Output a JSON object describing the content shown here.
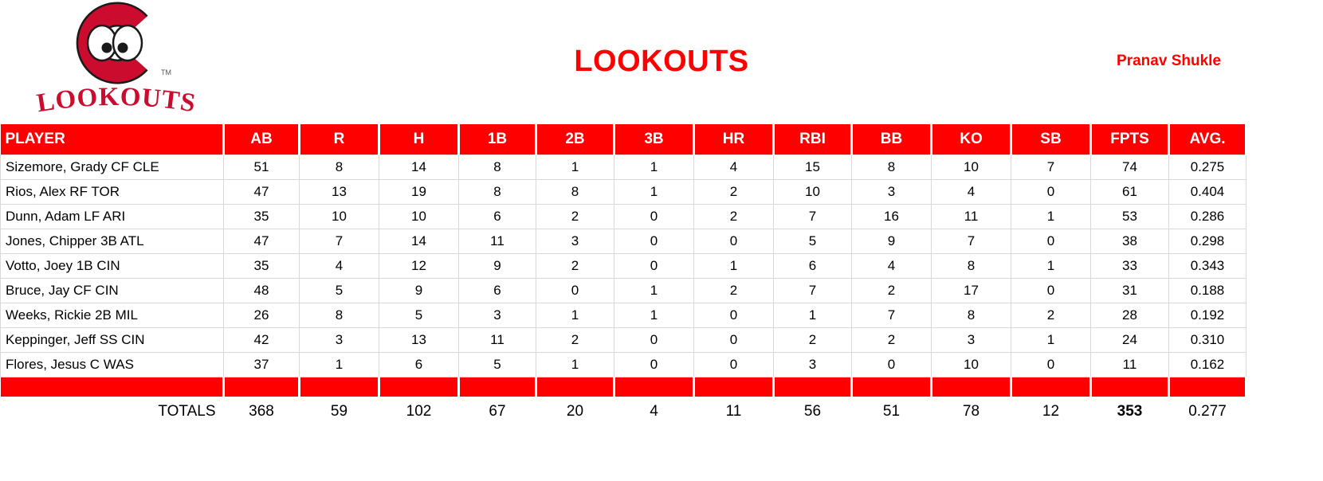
{
  "logo": {
    "word": "LOOKOUTS",
    "tm": "TM"
  },
  "header": {
    "team_title": "LOOKOUTS",
    "owner": "Pranav Shukle"
  },
  "colors": {
    "table_red": "#fe0000",
    "title_red": "#ff0000",
    "logo_red": "#cb0c2e"
  },
  "chart_data": {
    "type": "table",
    "title": "LOOKOUTS",
    "columns": [
      "PLAYER",
      "AB",
      "R",
      "H",
      "1B",
      "2B",
      "3B",
      "HR",
      "RBI",
      "BB",
      "KO",
      "SB",
      "FPTS",
      "AVG."
    ],
    "rows": [
      {
        "player": "Sizemore, Grady CF CLE",
        "stats": [
          "51",
          "8",
          "14",
          "8",
          "1",
          "1",
          "4",
          "15",
          "8",
          "10",
          "7",
          "74",
          "0.275"
        ]
      },
      {
        "player": "Rios, Alex RF TOR",
        "stats": [
          "47",
          "13",
          "19",
          "8",
          "8",
          "1",
          "2",
          "10",
          "3",
          "4",
          "0",
          "61",
          "0.404"
        ]
      },
      {
        "player": "Dunn, Adam LF ARI",
        "stats": [
          "35",
          "10",
          "10",
          "6",
          "2",
          "0",
          "2",
          "7",
          "16",
          "11",
          "1",
          "53",
          "0.286"
        ]
      },
      {
        "player": "Jones, Chipper 3B ATL",
        "stats": [
          "47",
          "7",
          "14",
          "11",
          "3",
          "0",
          "0",
          "5",
          "9",
          "7",
          "0",
          "38",
          "0.298"
        ]
      },
      {
        "player": "Votto, Joey 1B CIN",
        "stats": [
          "35",
          "4",
          "12",
          "9",
          "2",
          "0",
          "1",
          "6",
          "4",
          "8",
          "1",
          "33",
          "0.343"
        ]
      },
      {
        "player": "Bruce, Jay CF CIN",
        "stats": [
          "48",
          "5",
          "9",
          "6",
          "0",
          "1",
          "2",
          "7",
          "2",
          "17",
          "0",
          "31",
          "0.188"
        ]
      },
      {
        "player": "Weeks, Rickie 2B MIL",
        "stats": [
          "26",
          "8",
          "5",
          "3",
          "1",
          "1",
          "0",
          "1",
          "7",
          "8",
          "2",
          "28",
          "0.192"
        ]
      },
      {
        "player": "Keppinger, Jeff SS CIN",
        "stats": [
          "42",
          "3",
          "13",
          "11",
          "2",
          "0",
          "0",
          "2",
          "2",
          "3",
          "1",
          "24",
          "0.310"
        ]
      },
      {
        "player": "Flores, Jesus C WAS",
        "stats": [
          "37",
          "1",
          "6",
          "5",
          "1",
          "0",
          "0",
          "3",
          "0",
          "10",
          "0",
          "11",
          "0.162"
        ]
      }
    ],
    "totals": {
      "label": "TOTALS",
      "stats": [
        "368",
        "59",
        "102",
        "67",
        "20",
        "4",
        "11",
        "56",
        "51",
        "78",
        "12",
        "353",
        "0.277"
      ]
    },
    "bold_total_column": "FPTS"
  }
}
